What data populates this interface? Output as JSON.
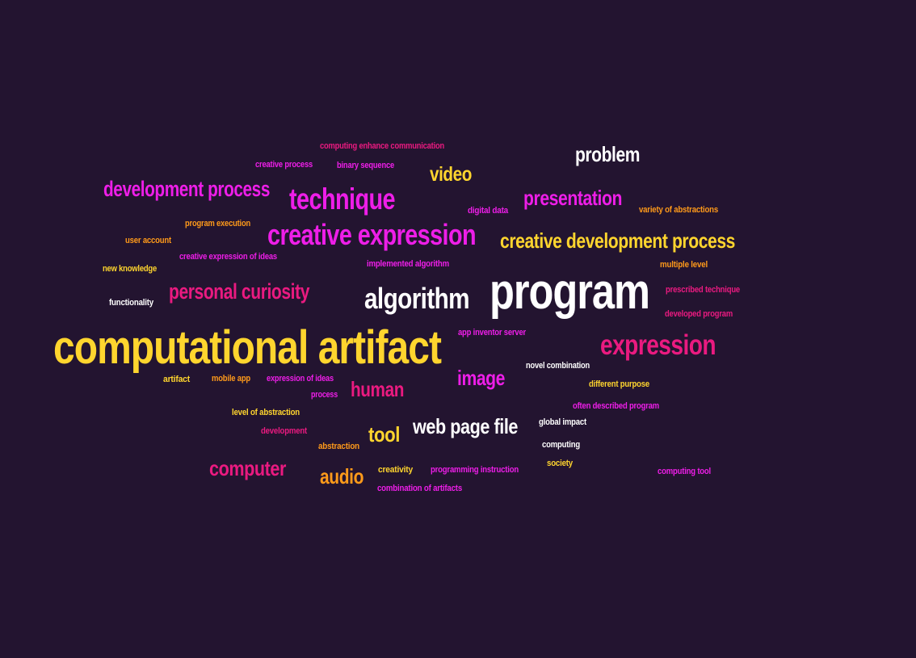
{
  "colors": {
    "background": "#231430",
    "white": "#ffffff",
    "yellow": "#ffd52e",
    "magenta": "#ee1ee8",
    "pink": "#ea1a80",
    "orange": "#ff9a1a"
  },
  "words": [
    {
      "id": "w1",
      "text": "computing enhance communication"
    },
    {
      "id": "w2",
      "text": "problem"
    },
    {
      "id": "w3",
      "text": "creative process"
    },
    {
      "id": "w4",
      "text": "binary sequence"
    },
    {
      "id": "w5",
      "text": "video"
    },
    {
      "id": "w6",
      "text": "development process"
    },
    {
      "id": "w7",
      "text": "technique"
    },
    {
      "id": "w8",
      "text": "presentation"
    },
    {
      "id": "w9",
      "text": "digital data"
    },
    {
      "id": "w10",
      "text": "variety of abstractions"
    },
    {
      "id": "w11",
      "text": "program execution"
    },
    {
      "id": "w12",
      "text": "creative expression"
    },
    {
      "id": "w13",
      "text": "user account"
    },
    {
      "id": "w14",
      "text": "creative development process"
    },
    {
      "id": "w15",
      "text": "creative expression of ideas"
    },
    {
      "id": "w16",
      "text": "new knowledge"
    },
    {
      "id": "w17",
      "text": "implemented algorithm"
    },
    {
      "id": "w18",
      "text": "multiple level"
    },
    {
      "id": "w19",
      "text": "program"
    },
    {
      "id": "w20",
      "text": "personal curiosity"
    },
    {
      "id": "w21",
      "text": "prescribed technique"
    },
    {
      "id": "w22",
      "text": "functionality"
    },
    {
      "id": "w23",
      "text": "algorithm"
    },
    {
      "id": "w24",
      "text": "developed program"
    },
    {
      "id": "w25",
      "text": "app inventor server"
    },
    {
      "id": "w26",
      "text": "computational artifact"
    },
    {
      "id": "w27",
      "text": "expression"
    },
    {
      "id": "w28",
      "text": "novel combination"
    },
    {
      "id": "w29",
      "text": "image"
    },
    {
      "id": "w30",
      "text": "artifact"
    },
    {
      "id": "w31",
      "text": "mobile app"
    },
    {
      "id": "w32",
      "text": "expression of ideas"
    },
    {
      "id": "w33",
      "text": "different purpose"
    },
    {
      "id": "w34",
      "text": "human"
    },
    {
      "id": "w35",
      "text": "process"
    },
    {
      "id": "w36",
      "text": "often described program"
    },
    {
      "id": "w37",
      "text": "level of abstraction"
    },
    {
      "id": "w38",
      "text": "global impact"
    },
    {
      "id": "w39",
      "text": "web page file"
    },
    {
      "id": "w40",
      "text": "development"
    },
    {
      "id": "w41",
      "text": "tool"
    },
    {
      "id": "w42",
      "text": "abstraction"
    },
    {
      "id": "w43",
      "text": "computing"
    },
    {
      "id": "w44",
      "text": "computer"
    },
    {
      "id": "w45",
      "text": "society"
    },
    {
      "id": "w46",
      "text": "creativity"
    },
    {
      "id": "w47",
      "text": "programming instruction"
    },
    {
      "id": "w48",
      "text": "audio"
    },
    {
      "id": "w49",
      "text": "computing tool"
    },
    {
      "id": "w50",
      "text": "combination of artifacts"
    }
  ]
}
